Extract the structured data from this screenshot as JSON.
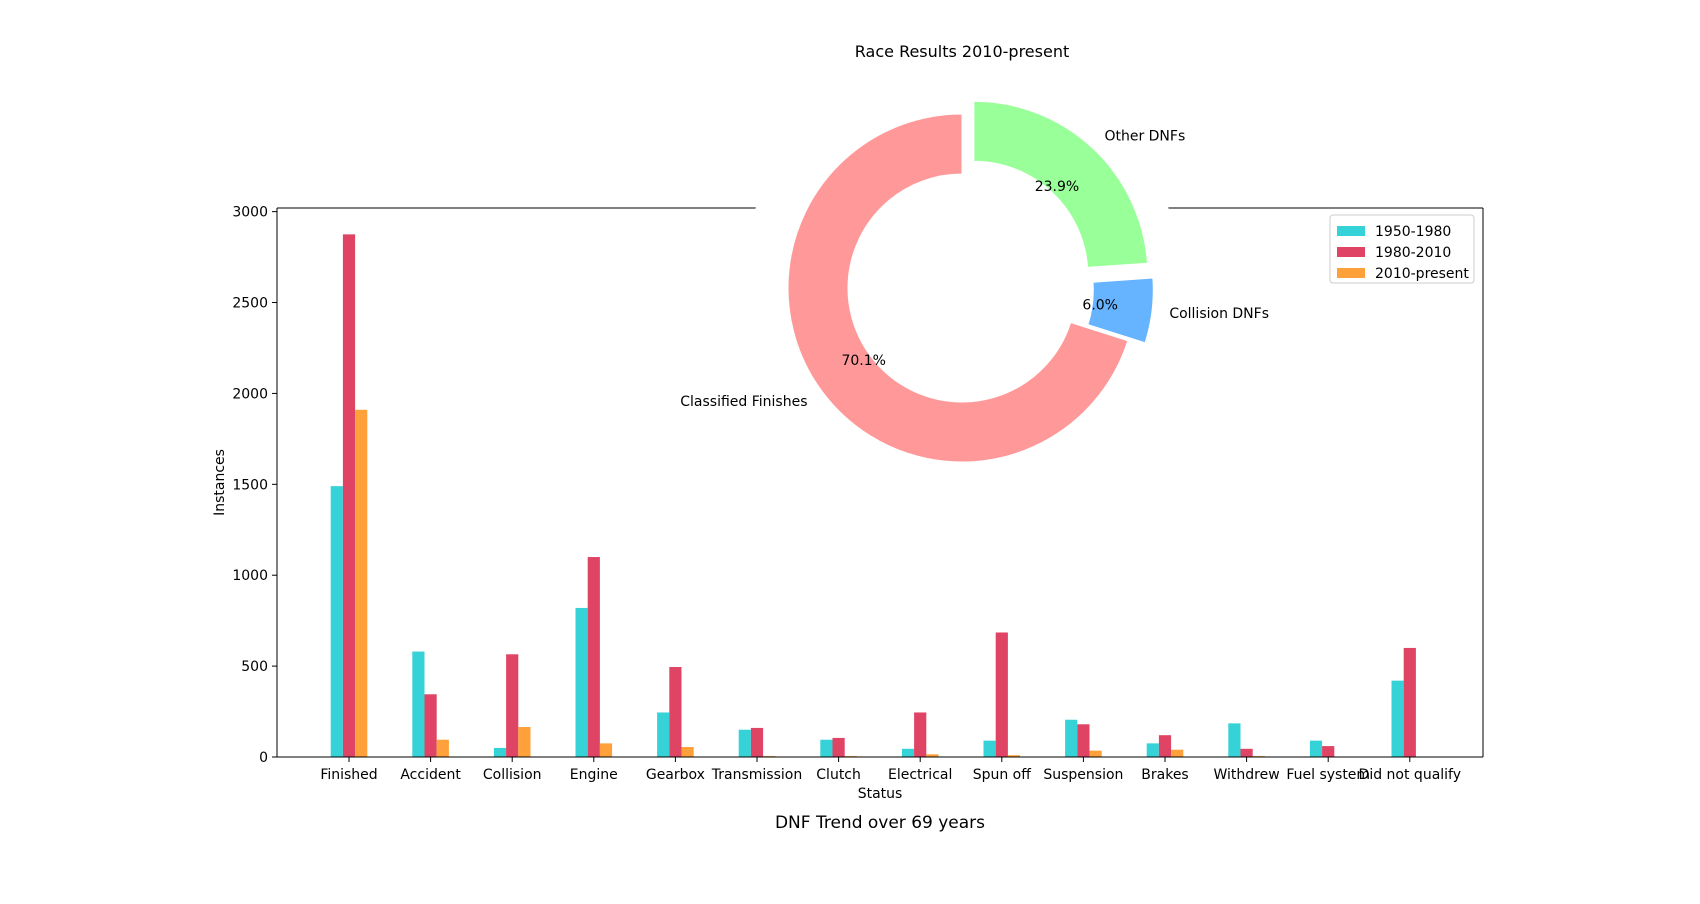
{
  "chart_data": [
    {
      "type": "bar",
      "title": "DNF Trend over 69 years",
      "xlabel": "Status",
      "ylabel": "Instances",
      "ylim": [
        0,
        3020
      ],
      "yticks": [
        0,
        500,
        1000,
        1500,
        2000,
        2500,
        3000
      ],
      "grid": false,
      "legend_position": "top-right",
      "categories": [
        "Finished",
        "Accident",
        "Collision",
        "Engine",
        "Gearbox",
        "Transmission",
        "Clutch",
        "Electrical",
        "Spun off",
        "Suspension",
        "Brakes",
        "Withdrew",
        "Fuel system",
        "Did not qualify"
      ],
      "series": [
        {
          "name": "1950-1980",
          "color": "#35d3d8",
          "values": [
            1490,
            580,
            50,
            820,
            245,
            150,
            95,
            45,
            90,
            205,
            75,
            185,
            90,
            420
          ]
        },
        {
          "name": "1980-2010",
          "color": "#e04465",
          "values": [
            2875,
            345,
            565,
            1100,
            495,
            160,
            105,
            245,
            685,
            180,
            120,
            45,
            60,
            600
          ]
        },
        {
          "name": "2010-present",
          "color": "#ffa13a",
          "values": [
            1910,
            95,
            165,
            75,
            55,
            5,
            5,
            15,
            10,
            35,
            40,
            5,
            0,
            0
          ]
        }
      ]
    },
    {
      "type": "pie",
      "subtype": "donut",
      "title": "Race Results 2010-present",
      "start": "top",
      "direction": "clockwise",
      "slices": [
        {
          "label": "Other DNFs",
          "value": 23.9,
          "pct_label": "23.9%",
          "color": "#99ff99",
          "exploded": true
        },
        {
          "label": "Collision DNFs",
          "value": 6.0,
          "pct_label": "6.0%",
          "color": "#66b3ff",
          "exploded": true
        },
        {
          "label": "Classified Finishes",
          "value": 70.1,
          "pct_label": "70.1%",
          "color": "#ff9999",
          "exploded": false
        }
      ]
    }
  ]
}
